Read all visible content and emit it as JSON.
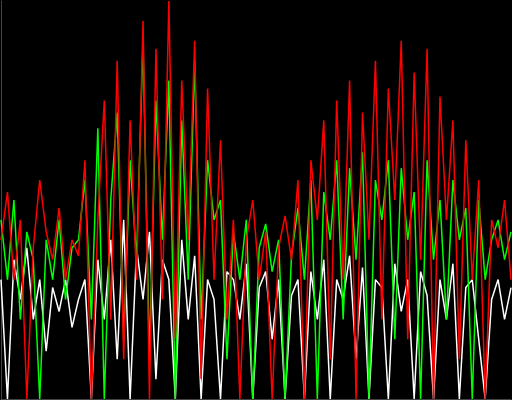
{
  "chart_data": {
    "type": "line",
    "x": [
      0,
      1,
      2,
      3,
      4,
      5,
      6,
      7,
      8,
      9,
      10,
      11,
      12,
      13,
      14,
      15,
      16,
      17,
      18,
      19,
      20,
      21,
      22,
      23,
      24,
      25,
      26,
      27,
      28,
      29,
      30,
      31,
      32,
      33,
      34,
      35,
      36,
      37,
      38,
      39,
      40,
      41,
      42,
      43,
      44,
      45,
      46,
      47,
      48,
      49,
      50,
      51,
      52,
      53,
      54,
      55,
      56,
      57,
      58,
      59,
      60,
      61,
      62,
      63,
      64,
      65,
      66,
      67,
      68,
      69,
      70,
      71,
      72,
      73,
      74,
      75,
      76,
      77,
      78,
      79
    ],
    "series": [
      {
        "color": "#ffffff",
        "values": [
          30,
          0,
          35,
          25,
          38,
          20,
          30,
          12,
          28,
          22,
          30,
          18,
          25,
          30,
          0,
          35,
          20,
          40,
          10,
          45,
          0,
          38,
          25,
          42,
          5,
          35,
          30,
          0,
          40,
          20,
          36,
          0,
          30,
          25,
          0,
          32,
          30,
          20,
          34,
          0,
          28,
          32,
          15,
          30,
          0,
          26,
          30,
          0,
          32,
          20,
          35,
          0,
          30,
          25,
          36,
          10,
          33,
          0,
          30,
          28,
          0,
          34,
          22,
          30,
          0,
          32,
          26,
          0,
          30,
          20,
          34,
          0,
          28,
          30,
          15,
          0,
          25,
          30,
          20,
          28
        ]
      },
      {
        "color": "#00ff00",
        "values": [
          45,
          30,
          50,
          20,
          42,
          35,
          0,
          40,
          30,
          45,
          25,
          38,
          40,
          55,
          20,
          68,
          0,
          50,
          72,
          15,
          60,
          35,
          90,
          10,
          75,
          40,
          80,
          0,
          70,
          30,
          85,
          20,
          60,
          45,
          50,
          10,
          42,
          30,
          45,
          0,
          38,
          44,
          32,
          40,
          0,
          36,
          48,
          30,
          55,
          0,
          52,
          40,
          60,
          20,
          58,
          35,
          62,
          0,
          55,
          45,
          60,
          15,
          58,
          40,
          52,
          0,
          60,
          35,
          50,
          20,
          55,
          40,
          48,
          0,
          50,
          30,
          40,
          45,
          35,
          42
        ]
      },
      {
        "color": "#ff0000",
        "values": [
          40,
          52,
          30,
          45,
          0,
          38,
          55,
          42,
          35,
          48,
          30,
          40,
          36,
          60,
          0,
          45,
          75,
          20,
          85,
          10,
          70,
          30,
          95,
          0,
          88,
          25,
          100,
          15,
          80,
          40,
          90,
          5,
          78,
          30,
          65,
          20,
          45,
          0,
          40,
          50,
          30,
          42,
          0,
          38,
          46,
          35,
          55,
          0,
          60,
          45,
          70,
          10,
          75,
          30,
          80,
          0,
          72,
          40,
          85,
          20,
          78,
          50,
          90,
          15,
          82,
          35,
          88,
          0,
          76,
          45,
          70,
          10,
          65,
          30,
          55,
          0,
          45,
          38,
          50,
          30
        ]
      }
    ],
    "xlim": [
      0,
      79
    ],
    "ylim": [
      0,
      100
    ],
    "grid": false,
    "tick_labels": false
  }
}
